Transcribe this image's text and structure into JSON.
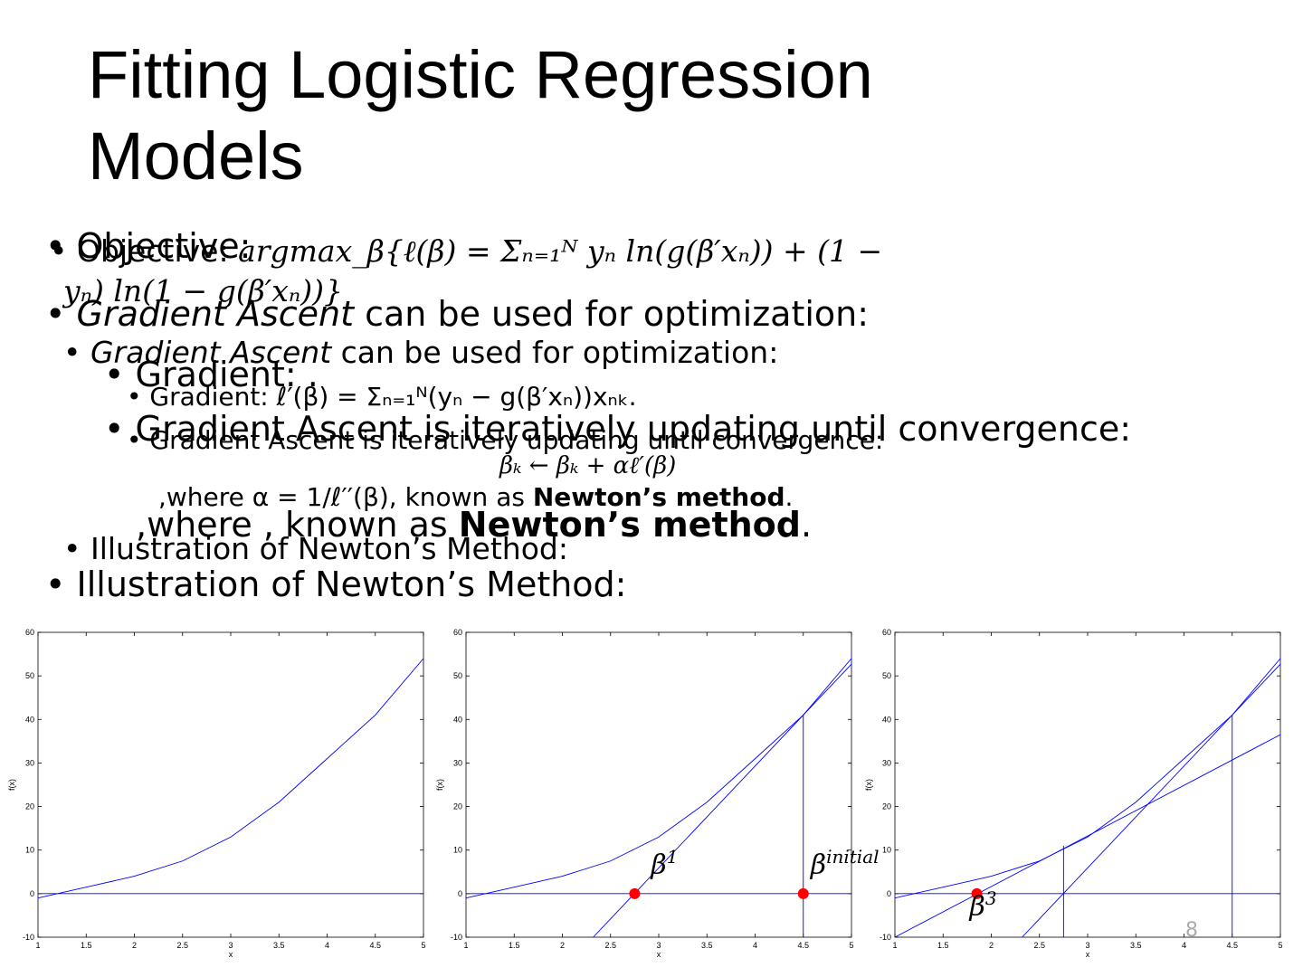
{
  "slide": {
    "title_line1": "Fitting Logistic Regression",
    "title_line2": "Models",
    "layer_a": {
      "objective": "Objective:",
      "gradient_ascent_em": "Gradient Ascent",
      "gradient_ascent_rest": " can be used for optimization:",
      "gradient": "Gradient: .",
      "iterative": "Gradient Ascent is iteratively updating until convergence:",
      "where": ",where , known as ",
      "newton": "Newton’s method",
      "period": ".",
      "illustration": "Illustration of Newton’s Method:"
    },
    "layer_b": {
      "objective_label": "Objective: ",
      "objective_math1": "argmax_β{ℓ(β) = Σₙ₌₁ᴺ yₙ ln(g(β′xₙ)) + (1 −",
      "objective_math2": "yₙ) ln(1 − g(β′xₙ))}",
      "gradient_ascent_em": "Gradient Ascent",
      "gradient_ascent_rest": " can be used for optimization:",
      "gradient": "Gradient: ℓ′(β) = Σₙ₌₁ᴺ(yₙ − g(β′xₙ))xₙₖ.",
      "iterative": "Gradient Ascent is iteratively updating until convergence:",
      "update": "βₖ ← βₖ + αℓ′(β)",
      "where": ",where α = 1/ℓ′′(β), known as ",
      "newton": "Newton’s method",
      "period": ".",
      "illustration": "Illustration of Newton’s Method:"
    },
    "page_number": "8"
  },
  "plots": [
    {
      "xlim": [
        1,
        5
      ],
      "ylim": [
        -10,
        60
      ],
      "xticks": [
        1,
        1.5,
        2,
        2.5,
        3,
        3.5,
        4,
        4.5,
        5
      ],
      "yticks": [
        -10,
        0,
        10,
        20,
        30,
        40,
        50,
        60
      ],
      "x_label": "x",
      "y_label": "f(x)",
      "curve": {
        "x": [
          1,
          1.5,
          2,
          2.5,
          3,
          3.5,
          4,
          4.5,
          5
        ],
        "y": [
          -1,
          1.5,
          4,
          7.5,
          13,
          21,
          31,
          41,
          54
        ]
      },
      "lines": [
        {
          "x": [
            1,
            5
          ],
          "y": [
            0,
            0
          ]
        }
      ],
      "points": []
    },
    {
      "xlim": [
        1,
        5
      ],
      "ylim": [
        -10,
        60
      ],
      "xticks": [
        1,
        1.5,
        2,
        2.5,
        3,
        3.5,
        4,
        4.5,
        5
      ],
      "yticks": [
        -10,
        0,
        10,
        20,
        30,
        40,
        50,
        60
      ],
      "x_label": "x",
      "y_label": "f(x)",
      "curve": {
        "x": [
          1,
          1.5,
          2,
          2.5,
          3,
          3.5,
          4,
          4.5,
          5
        ],
        "y": [
          -1,
          1.5,
          4,
          7.5,
          13,
          21,
          31,
          41,
          54
        ]
      },
      "lines": [
        {
          "x": [
            1,
            5
          ],
          "y": [
            0,
            0
          ]
        },
        {
          "x": [
            2.32,
            5
          ],
          "y": [
            -10,
            52.7
          ]
        },
        {
          "x": [
            4.5,
            4.5
          ],
          "y": [
            -10,
            41
          ]
        }
      ],
      "points": [
        {
          "x": 2.75,
          "y": 0,
          "label": "β",
          "sup": "1"
        },
        {
          "x": 4.5,
          "y": 0,
          "label": "β",
          "sup": "initial"
        }
      ]
    },
    {
      "xlim": [
        1,
        5
      ],
      "ylim": [
        -10,
        60
      ],
      "xticks": [
        1,
        1.5,
        2,
        2.5,
        3,
        3.5,
        4,
        4.5,
        5
      ],
      "yticks": [
        -10,
        0,
        10,
        20,
        30,
        40,
        50,
        60
      ],
      "x_label": "x",
      "y_label": "f(x)",
      "curve": {
        "x": [
          1,
          1.5,
          2,
          2.5,
          3,
          3.5,
          4,
          4.5,
          5
        ],
        "y": [
          -1,
          1.5,
          4,
          7.5,
          13,
          21,
          31,
          41,
          54
        ]
      },
      "lines": [
        {
          "x": [
            1,
            5
          ],
          "y": [
            0,
            0
          ]
        },
        {
          "x": [
            2.32,
            5
          ],
          "y": [
            -10,
            52.7
          ]
        },
        {
          "x": [
            4.5,
            4.5
          ],
          "y": [
            -10,
            41
          ]
        },
        {
          "x": [
            1,
            5
          ],
          "y": [
            -10,
            36.5
          ]
        },
        {
          "x": [
            2.75,
            2.75
          ],
          "y": [
            -10,
            11
          ]
        }
      ],
      "points": [
        {
          "x": 1.85,
          "y": 0,
          "label": "β",
          "sup": "3"
        }
      ]
    }
  ]
}
